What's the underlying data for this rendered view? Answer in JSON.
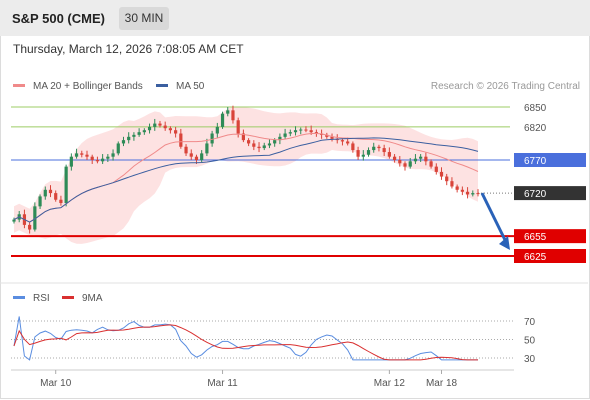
{
  "header": {
    "title": "S&P 500 (CME)",
    "timeframe": "30 MIN"
  },
  "timestamp": "Thursday, March 12, 2026 7:08:05 AM CET",
  "legend": {
    "bollinger": "MA 20 + Bollinger Bands",
    "ma50": "MA 50",
    "rsi": "RSI",
    "rsi_ma": "9MA"
  },
  "credit": "Research © 2026 Trading Central",
  "colors": {
    "up_candle": "#2e8b57",
    "down_candle": "#d9443a",
    "bollinger_fill": "#fde2e2",
    "bollinger_line": "#f08a8a",
    "ma50": "#3b5fa0",
    "resistance": "#9ccc65",
    "pivot": "#4a6fdc",
    "support": "#e00000",
    "rsi_line": "#5a8de0",
    "rsi_ma_line": "#d93030",
    "current_tag": "#333333",
    "arrow": "#2a62b8"
  },
  "chart_data": {
    "type": "candlestick",
    "price_axis_levels": [
      6850,
      6820,
      6770,
      6720,
      6655,
      6625
    ],
    "levels": [
      {
        "value": 6850,
        "kind": "resistance",
        "label": "6850"
      },
      {
        "value": 6820,
        "kind": "resistance",
        "label": "6820"
      },
      {
        "value": 6770,
        "kind": "pivot",
        "label": "6770"
      },
      {
        "value": 6720,
        "kind": "current",
        "label": "6720"
      },
      {
        "value": 6655,
        "kind": "support",
        "label": "6655"
      },
      {
        "value": 6625,
        "kind": "support",
        "label": "6625"
      }
    ],
    "x_tick_labels": [
      "Mar 10",
      "Mar 11",
      "Mar 12",
      "Mar 18"
    ],
    "x_tick_positions": [
      8,
      40,
      72,
      82
    ],
    "close": [
      6680,
      6688,
      6672,
      6665,
      6700,
      6715,
      6725,
      6720,
      6710,
      6705,
      6760,
      6775,
      6780,
      6778,
      6775,
      6770,
      6768,
      6772,
      6775,
      6780,
      6795,
      6800,
      6805,
      6808,
      6812,
      6815,
      6820,
      6825,
      6822,
      6818,
      6815,
      6810,
      6790,
      6780,
      6775,
      6770,
      6780,
      6795,
      6810,
      6820,
      6840,
      6845,
      6830,
      6810,
      6800,
      6795,
      6790,
      6788,
      6792,
      6795,
      6800,
      6805,
      6810,
      6812,
      6815,
      6816,
      6815,
      6812,
      6810,
      6808,
      6805,
      6802,
      6800,
      6798,
      6795,
      6785,
      6775,
      6778,
      6785,
      6790,
      6788,
      6782,
      6775,
      6770,
      6765,
      6760,
      6768,
      6772,
      6775,
      6768,
      6760,
      6752,
      6745,
      6738,
      6730,
      6725,
      6722,
      6718,
      6720,
      6719
    ],
    "rsi": {
      "axis_ticks": [
        30,
        50,
        70
      ],
      "series_name": "RSI",
      "ma_name": "9MA"
    },
    "projection": {
      "from": 6720,
      "to": 6625
    }
  }
}
